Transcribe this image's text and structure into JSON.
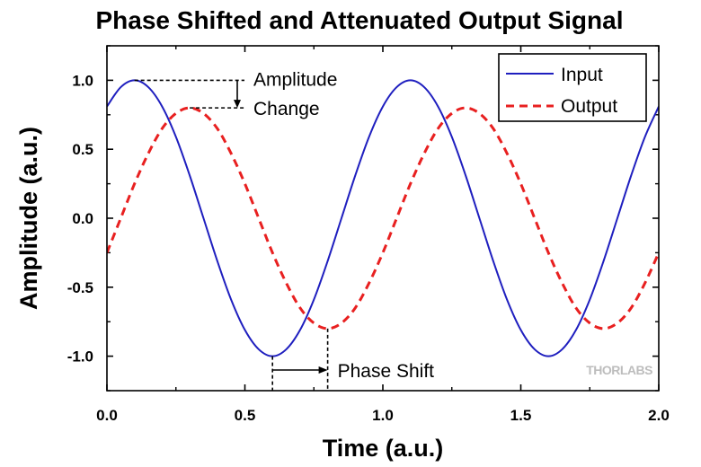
{
  "chart_data": {
    "type": "line",
    "title": "Phase Shifted and Attenuated Output Signal",
    "xlabel": "Time (a.u.)",
    "ylabel": "Amplitude (a.u.)",
    "xlim": [
      0,
      2
    ],
    "ylim": [
      -1.25,
      1.25
    ],
    "x_ticks": [
      0.0,
      0.5,
      1.0,
      1.5,
      2.0
    ],
    "x_tick_labels": [
      "0.0",
      "0.5",
      "1.0",
      "1.5",
      "2.0"
    ],
    "y_ticks": [
      -1.0,
      -0.5,
      0.0,
      0.5,
      1.0
    ],
    "y_tick_labels": [
      "-1.0",
      "-0.5",
      "0.0",
      "0.5",
      "1.0"
    ],
    "grid": false,
    "legend_position": "top-right",
    "series": [
      {
        "name": "Input",
        "color": "#1f1fbf",
        "style": "solid",
        "x": [
          0,
          0.05,
          0.1,
          0.15,
          0.2,
          0.25,
          0.3,
          0.35,
          0.4,
          0.45,
          0.5,
          0.55,
          0.6,
          0.65,
          0.7,
          0.75,
          0.8,
          0.85,
          0.9,
          0.95,
          1.0,
          1.05,
          1.1,
          1.15,
          1.2,
          1.25,
          1.3,
          1.35,
          1.4,
          1.45,
          1.5,
          1.55,
          1.6,
          1.65,
          1.7,
          1.75,
          1.8,
          1.85,
          1.9,
          1.95,
          2.0
        ],
        "y": [
          0.81,
          0.95,
          1.0,
          0.95,
          0.81,
          0.59,
          0.31,
          0.0,
          -0.31,
          -0.59,
          -0.81,
          -0.95,
          -1.0,
          -0.95,
          -0.81,
          -0.59,
          -0.31,
          0.0,
          0.31,
          0.59,
          0.81,
          0.95,
          1.0,
          0.95,
          0.81,
          0.59,
          0.31,
          0.0,
          -0.31,
          -0.59,
          -0.81,
          -0.95,
          -1.0,
          -0.95,
          -0.81,
          -0.59,
          -0.31,
          0.0,
          0.31,
          0.59,
          0.81
        ]
      },
      {
        "name": "Output",
        "color": "#e82020",
        "style": "dashed",
        "x": [
          0,
          0.05,
          0.1,
          0.15,
          0.2,
          0.25,
          0.3,
          0.35,
          0.4,
          0.45,
          0.5,
          0.55,
          0.6,
          0.65,
          0.7,
          0.75,
          0.8,
          0.85,
          0.9,
          0.95,
          1.0,
          1.05,
          1.1,
          1.15,
          1.2,
          1.25,
          1.3,
          1.35,
          1.4,
          1.45,
          1.5,
          1.55,
          1.6,
          1.65,
          1.7,
          1.75,
          1.8,
          1.85,
          1.9,
          1.95,
          2.0
        ],
        "y": [
          -0.25,
          0.0,
          0.25,
          0.47,
          0.65,
          0.76,
          0.8,
          0.76,
          0.65,
          0.47,
          0.25,
          0.0,
          -0.25,
          -0.47,
          -0.65,
          -0.76,
          -0.8,
          -0.76,
          -0.65,
          -0.47,
          -0.25,
          0.0,
          0.25,
          0.47,
          0.65,
          0.76,
          0.8,
          0.76,
          0.65,
          0.47,
          0.25,
          0.0,
          -0.25,
          -0.47,
          -0.65,
          -0.76,
          -0.8,
          -0.76,
          -0.65,
          -0.47,
          -0.25
        ]
      }
    ],
    "annotations": {
      "amplitude_change": {
        "line1": "Amplitude",
        "line2": "Change",
        "from_y": 1.0,
        "to_y": 0.8
      },
      "phase_shift": {
        "label": "Phase Shift",
        "from_x": 0.6,
        "to_x": 0.8
      }
    },
    "watermark": "THORLABS"
  }
}
